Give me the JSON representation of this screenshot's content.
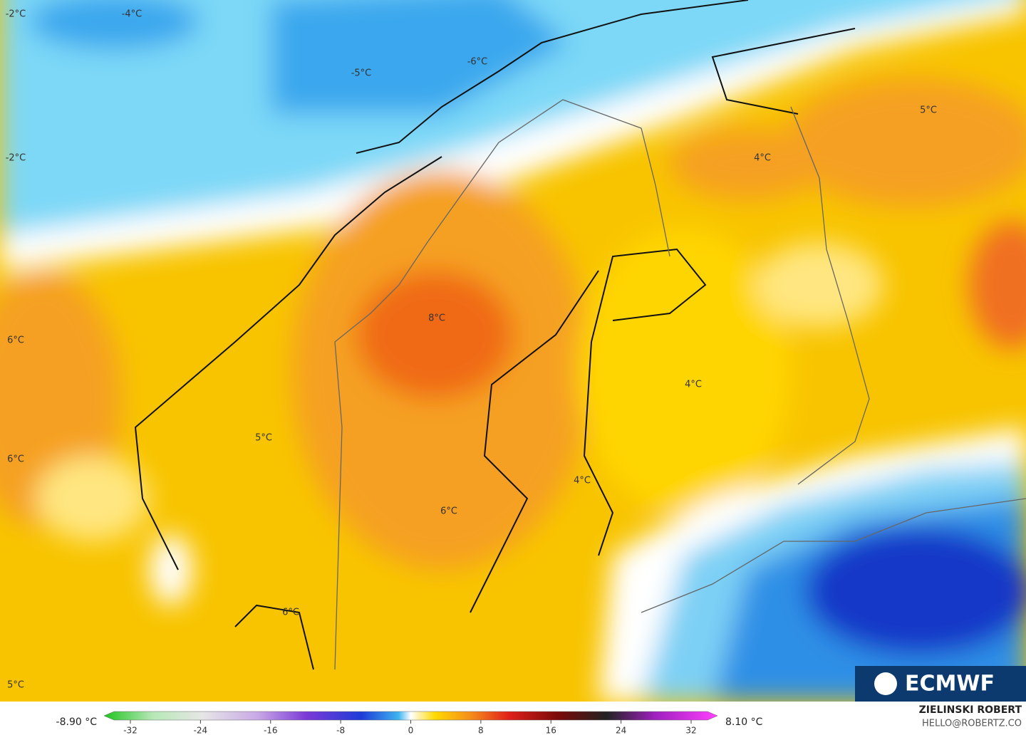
{
  "map": {
    "labels": [
      "-2°C",
      "-4°C",
      "-5°C",
      "-6°C",
      "-2°C",
      "5°C",
      "4°C",
      "6°C",
      "8°C",
      "5°C",
      "6°C",
      "4°C",
      "4°C",
      "6°C",
      "6°C",
      "5°C"
    ]
  },
  "colorbar": {
    "min_label": "-8.90 °C",
    "max_label": "8.10 °C",
    "lim": [
      -32,
      32
    ],
    "ticks": [
      -32,
      -24,
      -16,
      -8,
      0,
      8,
      16,
      24,
      32
    ]
  },
  "logo": "ECMWF",
  "credit": {
    "name": "ZIELINSKI ROBERT",
    "email": "HELLO@ROBERTZ.CO"
  }
}
